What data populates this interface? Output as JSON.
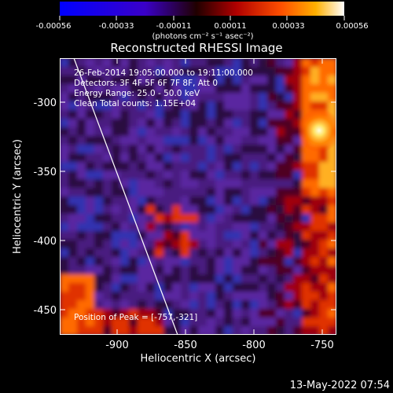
{
  "colorbar": {
    "tick_labels": [
      "-0.00056",
      "-0.00033",
      "-0.00011",
      "0.00011",
      "0.00033",
      "0.00056"
    ],
    "units_label": "(photons cm⁻² s⁻¹ asec⁻²)"
  },
  "image": {
    "title": "Reconstructed RHESSI Image",
    "info_lines": [
      "26-Feb-2014 19:05:00.000 to 19:11:00.000",
      "Detectors: 3F 4F 5F 6F 7F 8F, Att 0",
      "Energy Range: 25.0 - 50.0 keV",
      "Clean     Total counts: 1.15E+04"
    ],
    "peak_label": "Position of Peak = [-757,-321]"
  },
  "axes": {
    "xlabel": "Heliocentric X (arcsec)",
    "ylabel": "Heliocentric Y (arcsec)",
    "x_ticks": [
      "-900",
      "-850",
      "-800",
      "-750"
    ],
    "y_ticks": [
      "-300",
      "-350",
      "-400",
      "-450"
    ]
  },
  "footer": {
    "timestamp": "13-May-2022 07:54"
  }
}
